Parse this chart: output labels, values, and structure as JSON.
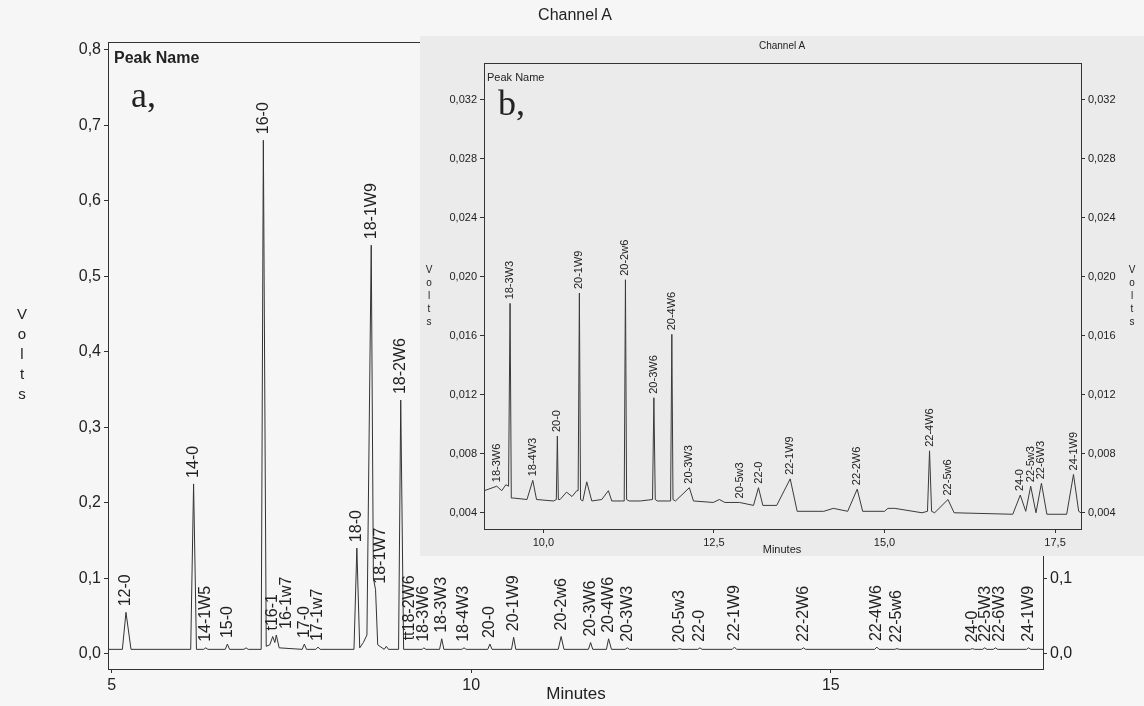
{
  "chart_data": [
    {
      "type": "line",
      "title": "Channel A",
      "xlabel": "Minutes",
      "ylabel": "Volts",
      "color": "#333333",
      "x": [
        4.95,
        5.15,
        5.2,
        5.27,
        6.1,
        6.14,
        6.18,
        6.28,
        6.31,
        6.34,
        6.58,
        6.61,
        6.64,
        6.84,
        6.87,
        6.9,
        7.08,
        7.11,
        7.15,
        7.2,
        7.24,
        7.27,
        7.29,
        7.33,
        7.65,
        7.68,
        7.71,
        7.84,
        7.87,
        7.9,
        8.37,
        8.41,
        8.45,
        8.5,
        8.55,
        8.61,
        8.64,
        8.67,
        8.7,
        8.79,
        8.82,
        8.85,
        8.99,
        9.02,
        9.06,
        9.32,
        9.34,
        9.37,
        9.56,
        9.59,
        9.62,
        9.87,
        9.9,
        9.93,
        10.23,
        10.26,
        10.29,
        10.56,
        10.59,
        10.62,
        11.21,
        11.25,
        11.29,
        11.63,
        11.66,
        11.69,
        11.88,
        11.91,
        11.95,
        12.14,
        12.17,
        12.2,
        12.87,
        12.9,
        12.93,
        13.15,
        13.18,
        13.21,
        13.63,
        13.66,
        13.69,
        14.59,
        14.62,
        14.65,
        15.61,
        15.64,
        15.67,
        15.89,
        15.92,
        15.95,
        16.94,
        16.97,
        17,
        17.11,
        17.14,
        17.17,
        17.26,
        17.29,
        17.32,
        17.72,
        17.75,
        17.78,
        17.95
      ],
      "values": [
        0.006,
        0.006,
        0.055,
        0.006,
        0.006,
        0.225,
        0.006,
        0.006,
        0.008,
        0.006,
        0.006,
        0.013,
        0.006,
        0.006,
        0.008,
        0.006,
        0.006,
        0.68,
        0.01,
        0.012,
        0.023,
        0.015,
        0.025,
        0.008,
        0.006,
        0.013,
        0.006,
        0.006,
        0.009,
        0.006,
        0.006,
        0.14,
        0.008,
        0.015,
        0.025,
        0.541,
        0.1,
        0.085,
        0.012,
        0.006,
        0.01,
        0.006,
        0.006,
        0.336,
        0.006,
        0.006,
        0.008,
        0.006,
        0.006,
        0.02,
        0.006,
        0.006,
        0.008,
        0.006,
        0.006,
        0.013,
        0.006,
        0.006,
        0.022,
        0.006,
        0.006,
        0.023,
        0.006,
        0.006,
        0.015,
        0.006,
        0.006,
        0.02,
        0.006,
        0.006,
        0.008,
        0.006,
        0.006,
        0.007,
        0.006,
        0.006,
        0.008,
        0.006,
        0.006,
        0.009,
        0.006,
        0.006,
        0.008,
        0.006,
        0.006,
        0.009,
        0.006,
        0.006,
        0.007,
        0.006,
        0.006,
        0.007,
        0.006,
        0.006,
        0.008,
        0.006,
        0.006,
        0.008,
        0.006,
        0.006,
        0.008,
        0.006,
        0.006
      ],
      "xlim": [
        4.95,
        17.95
      ],
      "xticks": [
        5,
        10,
        15
      ],
      "ylim": [
        -0.02,
        0.81
      ],
      "yticks": [
        {
          "value": 0,
          "label": "0,0"
        },
        {
          "value": 0.1,
          "label": "0,1"
        },
        {
          "value": 0.2,
          "label": "0,2"
        },
        {
          "value": 0.3,
          "label": "0,3"
        },
        {
          "value": 0.4,
          "label": "0,4"
        },
        {
          "value": 0.5,
          "label": "0,5"
        },
        {
          "value": 0.6,
          "label": "0,6"
        },
        {
          "value": 0.7,
          "label": "0,7"
        },
        {
          "value": 0.8,
          "label": "0,8"
        }
      ],
      "y2lim": [
        -0.02,
        0.81
      ],
      "y2ticks": [
        {
          "value": 0,
          "label": "0,0"
        },
        {
          "value": 0.1,
          "label": "0,1"
        }
      ],
      "annotations": [
        "Peak Name",
        "a,",
        {
          "text": "12-0",
          "x": 5.2,
          "y": 0.055
        },
        {
          "text": "14-0",
          "x": 6.14,
          "y": 0.225
        },
        {
          "text": "14-1W5",
          "x": 6.31,
          "y": 0.008
        },
        {
          "text": "15-0",
          "x": 6.61,
          "y": 0.013
        },
        {
          "text": "16-0",
          "x": 7.11,
          "y": 0.68
        },
        {
          "text": "t16-1",
          "x": 7.24,
          "y": 0.023
        },
        {
          "text": "16-1w7",
          "x": 7.29,
          "y": 0.025
        },
        {
          "text": "17-0",
          "x": 7.68,
          "y": 0.013
        },
        {
          "text": "17-1w7",
          "x": 7.87,
          "y": 0.009
        },
        {
          "text": "18-0",
          "x": 8.41,
          "y": 0.14
        },
        {
          "text": "18-1W9",
          "x": 8.61,
          "y": 0.541
        },
        {
          "text": "18-1W7",
          "x": 8.67,
          "y": 0.085
        },
        {
          "text": "tt18-2W6",
          "x": 8.82,
          "y": 0.01
        },
        {
          "text": "18-2W6",
          "x": 9.02,
          "y": 0.336
        },
        {
          "text": "18-3W6",
          "x": 9.34,
          "y": 0.008
        },
        {
          "text": "18-3W3",
          "x": 9.59,
          "y": 0.02
        },
        {
          "text": "18-4W3",
          "x": 9.9,
          "y": 0.008
        },
        {
          "text": "20-0",
          "x": 10.26,
          "y": 0.013
        },
        {
          "text": "20-1W9",
          "x": 10.59,
          "y": 0.022
        },
        {
          "text": "20-2w6",
          "x": 11.25,
          "y": 0.023
        },
        {
          "text": "20-3W6",
          "x": 11.66,
          "y": 0.015
        },
        {
          "text": "20-4W6",
          "x": 11.91,
          "y": 0.02
        },
        {
          "text": "20-3W3",
          "x": 12.17,
          "y": 0.008
        },
        {
          "text": "20-5w3",
          "x": 12.9,
          "y": 0.007
        },
        {
          "text": "22-0",
          "x": 13.18,
          "y": 0.008
        },
        {
          "text": "22-1W9",
          "x": 13.66,
          "y": 0.009
        },
        {
          "text": "22-2W6",
          "x": 14.62,
          "y": 0.008
        },
        {
          "text": "22-4W6",
          "x": 15.64,
          "y": 0.009
        },
        {
          "text": "22-5w6",
          "x": 15.92,
          "y": 0.007
        },
        {
          "text": "24-0",
          "x": 16.97,
          "y": 0.007
        },
        {
          "text": "22-5W3",
          "x": 17.14,
          "y": 0.008
        },
        {
          "text": "22-6W3",
          "x": 17.29,
          "y": 0.008
        },
        {
          "text": "24-1W9",
          "x": 17.75,
          "y": 0.008
        }
      ]
    },
    {
      "type": "line",
      "title": "Channel A",
      "xlabel": "Minutes",
      "ylabel": "Volts",
      "y2label": "Volts",
      "color": "#3a3a3a",
      "x": [
        9.135,
        9.317,
        9.39,
        9.45,
        9.49,
        9.512,
        9.53,
        9.56,
        9.76,
        9.845,
        9.9,
        10.15,
        10.19,
        10.205,
        10.22,
        10.245,
        10.34,
        10.42,
        10.49,
        10.51,
        10.528,
        10.545,
        10.578,
        10.636,
        10.71,
        10.856,
        10.953,
        11.003,
        11.15,
        11.185,
        11.203,
        11.22,
        11.257,
        11.42,
        11.6,
        11.62,
        11.64,
        11.67,
        11.83,
        11.865,
        11.883,
        11.9,
        11.936,
        12.14,
        12.2,
        12.49,
        12.58,
        12.66,
        12.875,
        13.08,
        13.153,
        13.217,
        13.42,
        13.618,
        13.72,
        14.11,
        14.25,
        14.46,
        14.6,
        14.68,
        15,
        15.05,
        15.15,
        15.55,
        15.63,
        15.66,
        15.69,
        15.735,
        15.93,
        16.02,
        16.88,
        16.99,
        17.07,
        17.143,
        17.22,
        17.3,
        17.38,
        17.67,
        17.77,
        17.846,
        17.88
      ],
      "values": [
        0.0055,
        0.0058,
        0.0055,
        0.0059,
        0.0058,
        0.0182,
        0.005,
        0.005,
        0.0049,
        0.0062,
        0.0049,
        0.0048,
        0.0049,
        0.0092,
        0.0049,
        0.0049,
        0.0054,
        0.0051,
        0.0055,
        0.0055,
        0.0189,
        0.0049,
        0.0048,
        0.0061,
        0.0048,
        0.0049,
        0.0055,
        0.0048,
        0.0048,
        0.0048,
        0.0198,
        0.0049,
        0.0048,
        0.0048,
        0.0049,
        0.0118,
        0.0049,
        0.0048,
        0.0048,
        0.0048,
        0.0161,
        0.0049,
        0.0048,
        0.0057,
        0.0048,
        0.0047,
        0.0049,
        0.0047,
        0.0047,
        0.0045,
        0.0057,
        0.0045,
        0.0045,
        0.0063,
        0.0041,
        0.0041,
        0.0043,
        0.0041,
        0.0056,
        0.0041,
        0.0041,
        0.0043,
        0.0043,
        0.004,
        0.0041,
        0.0082,
        0.0041,
        0.004,
        0.0049,
        0.004,
        0.0039,
        0.0052,
        0.0041,
        0.0058,
        0.004,
        0.006,
        0.0039,
        0.0039,
        0.0066,
        0.0041,
        0.004
      ],
      "xlim": [
        9.13,
        17.88
      ],
      "xticks": [
        {
          "value": 10,
          "label": "10,0"
        },
        {
          "value": 12.5,
          "label": "12,5"
        },
        {
          "value": 15,
          "label": "15,0"
        },
        {
          "value": 17.5,
          "label": "17,5"
        }
      ],
      "ylim": [
        0.0029,
        0.0345
      ],
      "yticks": [
        {
          "value": 0.004,
          "label": "0,004"
        },
        {
          "value": 0.008,
          "label": "0,008"
        },
        {
          "value": 0.012,
          "label": "0,012"
        },
        {
          "value": 0.016,
          "label": "0,016"
        },
        {
          "value": 0.02,
          "label": "0,020"
        },
        {
          "value": 0.024,
          "label": "0,024"
        },
        {
          "value": 0.028,
          "label": "0,028"
        },
        {
          "value": 0.032,
          "label": "0,032"
        }
      ],
      "y2lim": [
        0.0029,
        0.0345
      ],
      "y2ticks": [
        {
          "value": 0.004,
          "label": "0,004"
        },
        {
          "value": 0.008,
          "label": "0,008"
        },
        {
          "value": 0.012,
          "label": "0,012"
        },
        {
          "value": 0.016,
          "label": "0,016"
        },
        {
          "value": 0.02,
          "label": "0,020"
        },
        {
          "value": 0.024,
          "label": "0,024"
        },
        {
          "value": 0.028,
          "label": "0,028"
        },
        {
          "value": 0.032,
          "label": "0,032"
        }
      ],
      "annotations": [
        "Peak Name",
        "b,",
        {
          "text": "18-3W6",
          "x": 9.317,
          "y": 0.0058
        },
        {
          "text": "18-3W3",
          "x": 9.512,
          "y": 0.0182
        },
        {
          "text": "18-4W3",
          "x": 9.845,
          "y": 0.0062
        },
        {
          "text": "20-0",
          "x": 10.205,
          "y": 0.0092
        },
        {
          "text": "20-1W9",
          "x": 10.528,
          "y": 0.0189
        },
        {
          "text": "20-2w6",
          "x": 11.203,
          "y": 0.0198
        },
        {
          "text": "20-3W6",
          "x": 11.62,
          "y": 0.0118
        },
        {
          "text": "20-4W6",
          "x": 11.883,
          "y": 0.0161
        },
        {
          "text": "20-3W3",
          "x": 12.14,
          "y": 0.0057
        },
        {
          "text": "20-5w3",
          "x": 12.875,
          "y": 0.0047
        },
        {
          "text": "22-0",
          "x": 13.153,
          "y": 0.0057
        },
        {
          "text": "22-1W9",
          "x": 13.618,
          "y": 0.0063
        },
        {
          "text": "22-2W6",
          "x": 14.6,
          "y": 0.0056
        },
        {
          "text": "22-4W6",
          "x": 15.66,
          "y": 0.0082
        },
        {
          "text": "22-5w6",
          "x": 15.93,
          "y": 0.0049
        },
        {
          "text": "24-0",
          "x": 16.99,
          "y": 0.0052
        },
        {
          "text": "22-5w3",
          "x": 17.143,
          "y": 0.0058
        },
        {
          "text": "22-6W3",
          "x": 17.3,
          "y": 0.006
        },
        {
          "text": "24-1W9",
          "x": 17.77,
          "y": 0.0066
        }
      ]
    }
  ]
}
